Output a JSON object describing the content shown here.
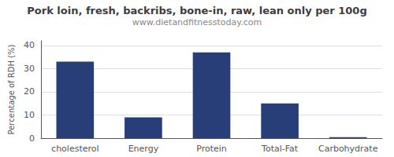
{
  "chart_data": {
    "type": "bar",
    "title": "Pork loin, fresh, backribs, bone-in, raw, lean only per 100g",
    "subtitle": "www.dietandfitnesstoday.com",
    "categories": [
      "cholesterol",
      "Energy",
      "Protein",
      "Total-Fat",
      "Carbohydrate"
    ],
    "values": [
      33,
      9,
      37,
      15,
      0.4
    ],
    "color": "#273e78",
    "ylabel": "Percentage of RDH (%)",
    "ylim": [
      0,
      42
    ],
    "yticks": [
      0,
      10,
      20,
      30,
      40
    ],
    "grid": true
  }
}
